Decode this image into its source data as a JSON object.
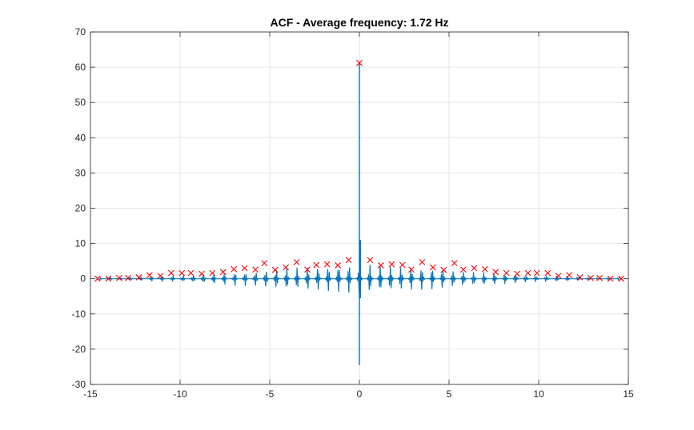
{
  "chart_data": {
    "type": "line",
    "title": "ACF - Average frequency: 1.72 Hz",
    "xlabel": "",
    "ylabel": "",
    "xlim": [
      -15,
      15
    ],
    "ylim": [
      -30,
      70
    ],
    "xticks": [
      -15,
      -10,
      -5,
      0,
      5,
      10,
      15
    ],
    "yticks": [
      -30,
      -20,
      -10,
      0,
      10,
      20,
      30,
      40,
      50,
      60,
      70
    ],
    "xtick_labels": [
      "-15",
      "-10",
      "-5",
      "0",
      "5",
      "10",
      "15"
    ],
    "ytick_labels": [
      "-30",
      "-20",
      "-10",
      "0",
      "10",
      "20",
      "30",
      "40",
      "50",
      "60",
      "70"
    ],
    "grid": true,
    "legend": "none",
    "series": [
      {
        "kind": "line",
        "color": "#0072BD",
        "description_points": {
          "center_peak": {
            "x": 0,
            "y": 61.2
          },
          "center_min": {
            "x": 0,
            "y": -24.5
          },
          "period": 0.58,
          "envelope_pos": [
            [
              -14.5,
              0.3
            ],
            [
              -12,
              0.6
            ],
            [
              -10,
              1.0
            ],
            [
              -8,
              1.4
            ],
            [
              -6,
              2.0
            ],
            [
              -4,
              3.0
            ],
            [
              -2,
              3.5
            ],
            [
              -0.6,
              4.0
            ],
            [
              0.6,
              4.0
            ],
            [
              2,
              3.5
            ],
            [
              4,
              3.0
            ],
            [
              6,
              2.0
            ],
            [
              8,
              1.4
            ],
            [
              10,
              1.0
            ],
            [
              12,
              0.6
            ],
            [
              14.5,
              0.3
            ]
          ],
          "envelope_neg": [
            [
              -14.5,
              -0.3
            ],
            [
              -12,
              -0.6
            ],
            [
              -10,
              -1.0
            ],
            [
              -8,
              -1.5
            ],
            [
              -6,
              -2.2
            ],
            [
              -4,
              -3.0
            ],
            [
              -2,
              -3.5
            ],
            [
              -0.6,
              -4.0
            ],
            [
              0.6,
              -4.0
            ],
            [
              2,
              -3.5
            ],
            [
              4,
              -3.0
            ],
            [
              6,
              -2.2
            ],
            [
              8,
              -1.5
            ],
            [
              10,
              -1.0
            ],
            [
              12,
              -0.6
            ],
            [
              14.5,
              -0.3
            ]
          ]
        }
      },
      {
        "kind": "peaks",
        "marker": "x",
        "color": "#FF0000",
        "points": [
          {
            "x": -14.6,
            "y": 0.0
          },
          {
            "x": -14.0,
            "y": 0.0
          },
          {
            "x": -13.4,
            "y": 0.2
          },
          {
            "x": -12.9,
            "y": 0.2
          },
          {
            "x": -12.3,
            "y": 0.4
          },
          {
            "x": -11.7,
            "y": 1.0
          },
          {
            "x": -11.1,
            "y": 0.8
          },
          {
            "x": -10.5,
            "y": 1.6
          },
          {
            "x": -9.9,
            "y": 1.6
          },
          {
            "x": -9.4,
            "y": 1.6
          },
          {
            "x": -8.8,
            "y": 1.4
          },
          {
            "x": -8.2,
            "y": 1.6
          },
          {
            "x": -7.6,
            "y": 1.9
          },
          {
            "x": -7.0,
            "y": 2.7
          },
          {
            "x": -6.4,
            "y": 3.0
          },
          {
            "x": -5.8,
            "y": 2.6
          },
          {
            "x": -5.3,
            "y": 4.4
          },
          {
            "x": -4.7,
            "y": 2.5
          },
          {
            "x": -4.1,
            "y": 3.2
          },
          {
            "x": -3.5,
            "y": 4.7
          },
          {
            "x": -2.9,
            "y": 2.6
          },
          {
            "x": -2.4,
            "y": 3.9
          },
          {
            "x": -1.8,
            "y": 4.1
          },
          {
            "x": -1.2,
            "y": 3.8
          },
          {
            "x": -0.6,
            "y": 5.3
          },
          {
            "x": 0.0,
            "y": 61.2
          },
          {
            "x": 0.6,
            "y": 5.3
          },
          {
            "x": 1.2,
            "y": 3.8
          },
          {
            "x": 1.8,
            "y": 4.1
          },
          {
            "x": 2.4,
            "y": 3.9
          },
          {
            "x": 2.9,
            "y": 2.6
          },
          {
            "x": 3.5,
            "y": 4.7
          },
          {
            "x": 4.1,
            "y": 3.2
          },
          {
            "x": 4.7,
            "y": 2.5
          },
          {
            "x": 5.3,
            "y": 4.4
          },
          {
            "x": 5.8,
            "y": 2.6
          },
          {
            "x": 6.4,
            "y": 3.0
          },
          {
            "x": 7.0,
            "y": 2.7
          },
          {
            "x": 7.6,
            "y": 1.9
          },
          {
            "x": 8.2,
            "y": 1.6
          },
          {
            "x": 8.8,
            "y": 1.4
          },
          {
            "x": 9.4,
            "y": 1.6
          },
          {
            "x": 9.9,
            "y": 1.6
          },
          {
            "x": 10.5,
            "y": 1.6
          },
          {
            "x": 11.1,
            "y": 0.8
          },
          {
            "x": 11.7,
            "y": 1.0
          },
          {
            "x": 12.3,
            "y": 0.4
          },
          {
            "x": 12.9,
            "y": 0.2
          },
          {
            "x": 13.4,
            "y": 0.2
          },
          {
            "x": 14.0,
            "y": 0.0
          },
          {
            "x": 14.6,
            "y": 0.0
          }
        ]
      }
    ]
  }
}
